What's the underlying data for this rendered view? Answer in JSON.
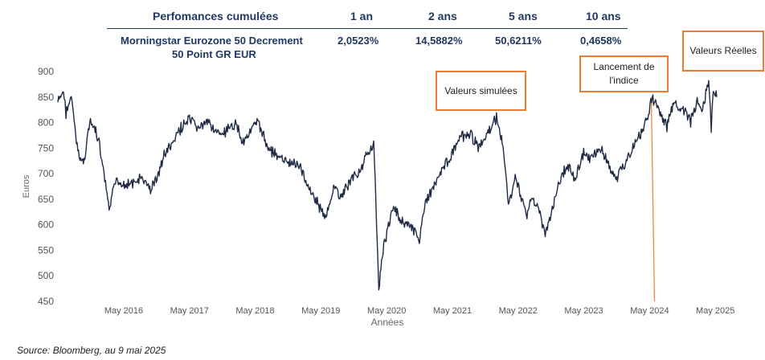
{
  "table": {
    "headers": [
      "Perfomances cumulées",
      "1 an",
      "2 ans",
      "5 ans",
      "10 ans"
    ],
    "row": {
      "name_line1": "Morningstar Eurozone 50 Decrement",
      "name_line2": "50 Point GR EUR",
      "values": [
        "2,0523%",
        "14,5882%",
        "50,6211%",
        "0,4658%"
      ]
    }
  },
  "callouts": {
    "simulated": "Valeurs simulées",
    "launch": "Lancement de l'indice",
    "real": "Valeurs Réelles"
  },
  "source": "Source: Bloomberg, au 9 mai 2025",
  "colors": {
    "line": "#1f2a44",
    "accent": "#ed7d31",
    "title": "#1f3864"
  },
  "chart_data": {
    "type": "line",
    "xlabel": "Années",
    "ylabel": "Euros",
    "ylim": [
      450,
      900
    ],
    "yticks": [
      450,
      500,
      550,
      600,
      650,
      700,
      750,
      800,
      850,
      900
    ],
    "xlim": [
      "2015-05-01",
      "2025-05-09"
    ],
    "xticks": [
      {
        "date": "2016-05-01",
        "label": "May 2016"
      },
      {
        "date": "2017-05-01",
        "label": "May 2017"
      },
      {
        "date": "2018-05-01",
        "label": "May 2018"
      },
      {
        "date": "2019-05-01",
        "label": "May 2019"
      },
      {
        "date": "2020-05-01",
        "label": "May 2020"
      },
      {
        "date": "2021-05-01",
        "label": "May 2021"
      },
      {
        "date": "2022-05-01",
        "label": "May 2022"
      },
      {
        "date": "2023-05-01",
        "label": "May 2023"
      },
      {
        "date": "2024-05-01",
        "label": "May 2024"
      },
      {
        "date": "2025-05-01",
        "label": "May 2025"
      }
    ],
    "launch_date": "2024-05-10",
    "grid": false,
    "series": [
      {
        "x": [
          "2015-05-01",
          "2015-06-01",
          "2015-06-15",
          "2015-07-15",
          "2015-08-20",
          "2015-09-20",
          "2015-10-25",
          "2015-11-20",
          "2015-12-15",
          "2016-02-10",
          "2016-03-20",
          "2016-05-01",
          "2016-06-24",
          "2016-08-01",
          "2016-10-01",
          "2016-11-10",
          "2016-12-15",
          "2017-02-01",
          "2017-03-15",
          "2017-05-01",
          "2017-06-15",
          "2017-08-20",
          "2017-10-15",
          "2017-11-20",
          "2018-01-20",
          "2018-02-15",
          "2018-03-25",
          "2018-05-20",
          "2018-06-30",
          "2018-08-15",
          "2018-10-25",
          "2018-12-27",
          "2019-02-15",
          "2019-04-15",
          "2019-05-30",
          "2019-07-15",
          "2019-08-15",
          "2019-10-15",
          "2019-12-15",
          "2020-01-15",
          "2020-02-19",
          "2020-03-18",
          "2020-04-15",
          "2020-05-15",
          "2020-06-08",
          "2020-07-15",
          "2020-09-01",
          "2020-10-30",
          "2020-11-15",
          "2020-12-15",
          "2021-02-15",
          "2021-04-15",
          "2021-06-15",
          "2021-08-15",
          "2021-09-30",
          "2021-11-15",
          "2021-12-20",
          "2022-01-05",
          "2022-02-10",
          "2022-03-08",
          "2022-04-15",
          "2022-05-15",
          "2022-06-15",
          "2022-07-15",
          "2022-08-15",
          "2022-09-29",
          "2022-11-15",
          "2022-12-15",
          "2023-02-01",
          "2023-03-15",
          "2023-04-30",
          "2023-06-15",
          "2023-07-30",
          "2023-09-15",
          "2023-10-27",
          "2023-12-15",
          "2024-02-15",
          "2024-03-28",
          "2024-05-15",
          "2024-06-15",
          "2024-08-05",
          "2024-09-15",
          "2024-10-15",
          "2024-11-15",
          "2024-12-15",
          "2025-01-20",
          "2025-02-15",
          "2025-03-05",
          "2025-03-25",
          "2025-04-08",
          "2025-04-20",
          "2025-05-09"
        ],
        "y": [
          840,
          860,
          820,
          850,
          740,
          720,
          800,
          790,
          760,
          630,
          690,
          680,
          680,
          690,
          670,
          700,
          740,
          760,
          790,
          805,
          790,
          800,
          775,
          780,
          800,
          760,
          780,
          800,
          760,
          740,
          720,
          720,
          680,
          640,
          610,
          680,
          650,
          690,
          710,
          740,
          760,
          480,
          560,
          600,
          640,
          610,
          600,
          570,
          620,
          650,
          700,
          730,
          770,
          775,
          750,
          780,
          800,
          810,
          740,
          640,
          690,
          660,
          620,
          650,
          640,
          580,
          640,
          680,
          720,
          690,
          740,
          730,
          750,
          720,
          690,
          720,
          760,
          790,
          845,
          830,
          790,
          840,
          830,
          820,
          800,
          840,
          820,
          850,
          880,
          790,
          860,
          850
        ]
      }
    ]
  }
}
